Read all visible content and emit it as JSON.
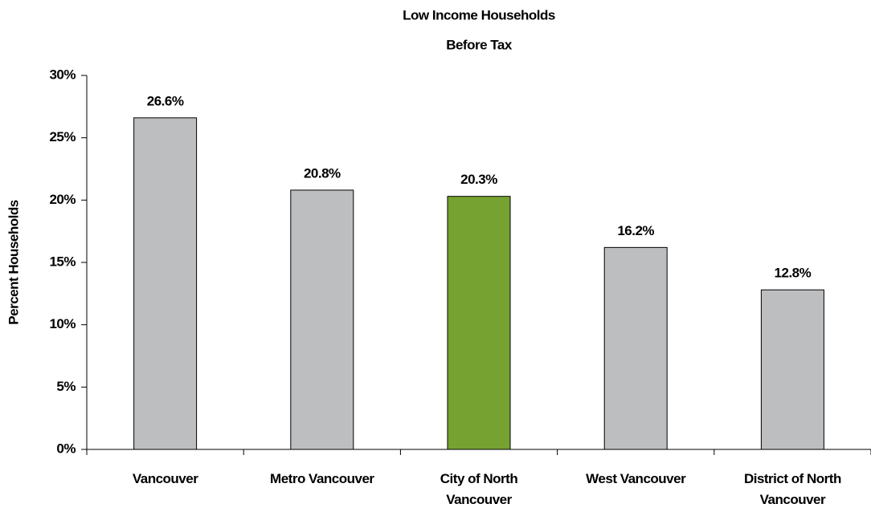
{
  "chart_data": {
    "type": "bar",
    "title": [
      "Low Income Households",
      "Before Tax"
    ],
    "y_label": "Percent Households",
    "categories": [
      "Vancouver",
      "Metro Vancouver",
      "City of North Vancouver",
      "West Vancouver",
      "District of North Vancouver"
    ],
    "values": [
      26.6,
      20.8,
      20.3,
      16.2,
      12.8
    ],
    "value_labels": [
      "26.6%",
      "20.8%",
      "20.3%",
      "16.2%",
      "12.8%"
    ],
    "colors": [
      "#bcbec0",
      "#bcbec0",
      "#76a232",
      "#bcbec0",
      "#bcbec0"
    ],
    "ylim": [
      0,
      30
    ],
    "yticks": [
      {
        "value": 0,
        "label": "0%"
      },
      {
        "value": 5,
        "label": "5%"
      },
      {
        "value": 10,
        "label": "10%"
      },
      {
        "value": 15,
        "label": "15%"
      },
      {
        "value": 20,
        "label": "20%"
      },
      {
        "value": 25,
        "label": "25%"
      },
      {
        "value": 30,
        "label": "30%"
      }
    ],
    "grid": false
  }
}
